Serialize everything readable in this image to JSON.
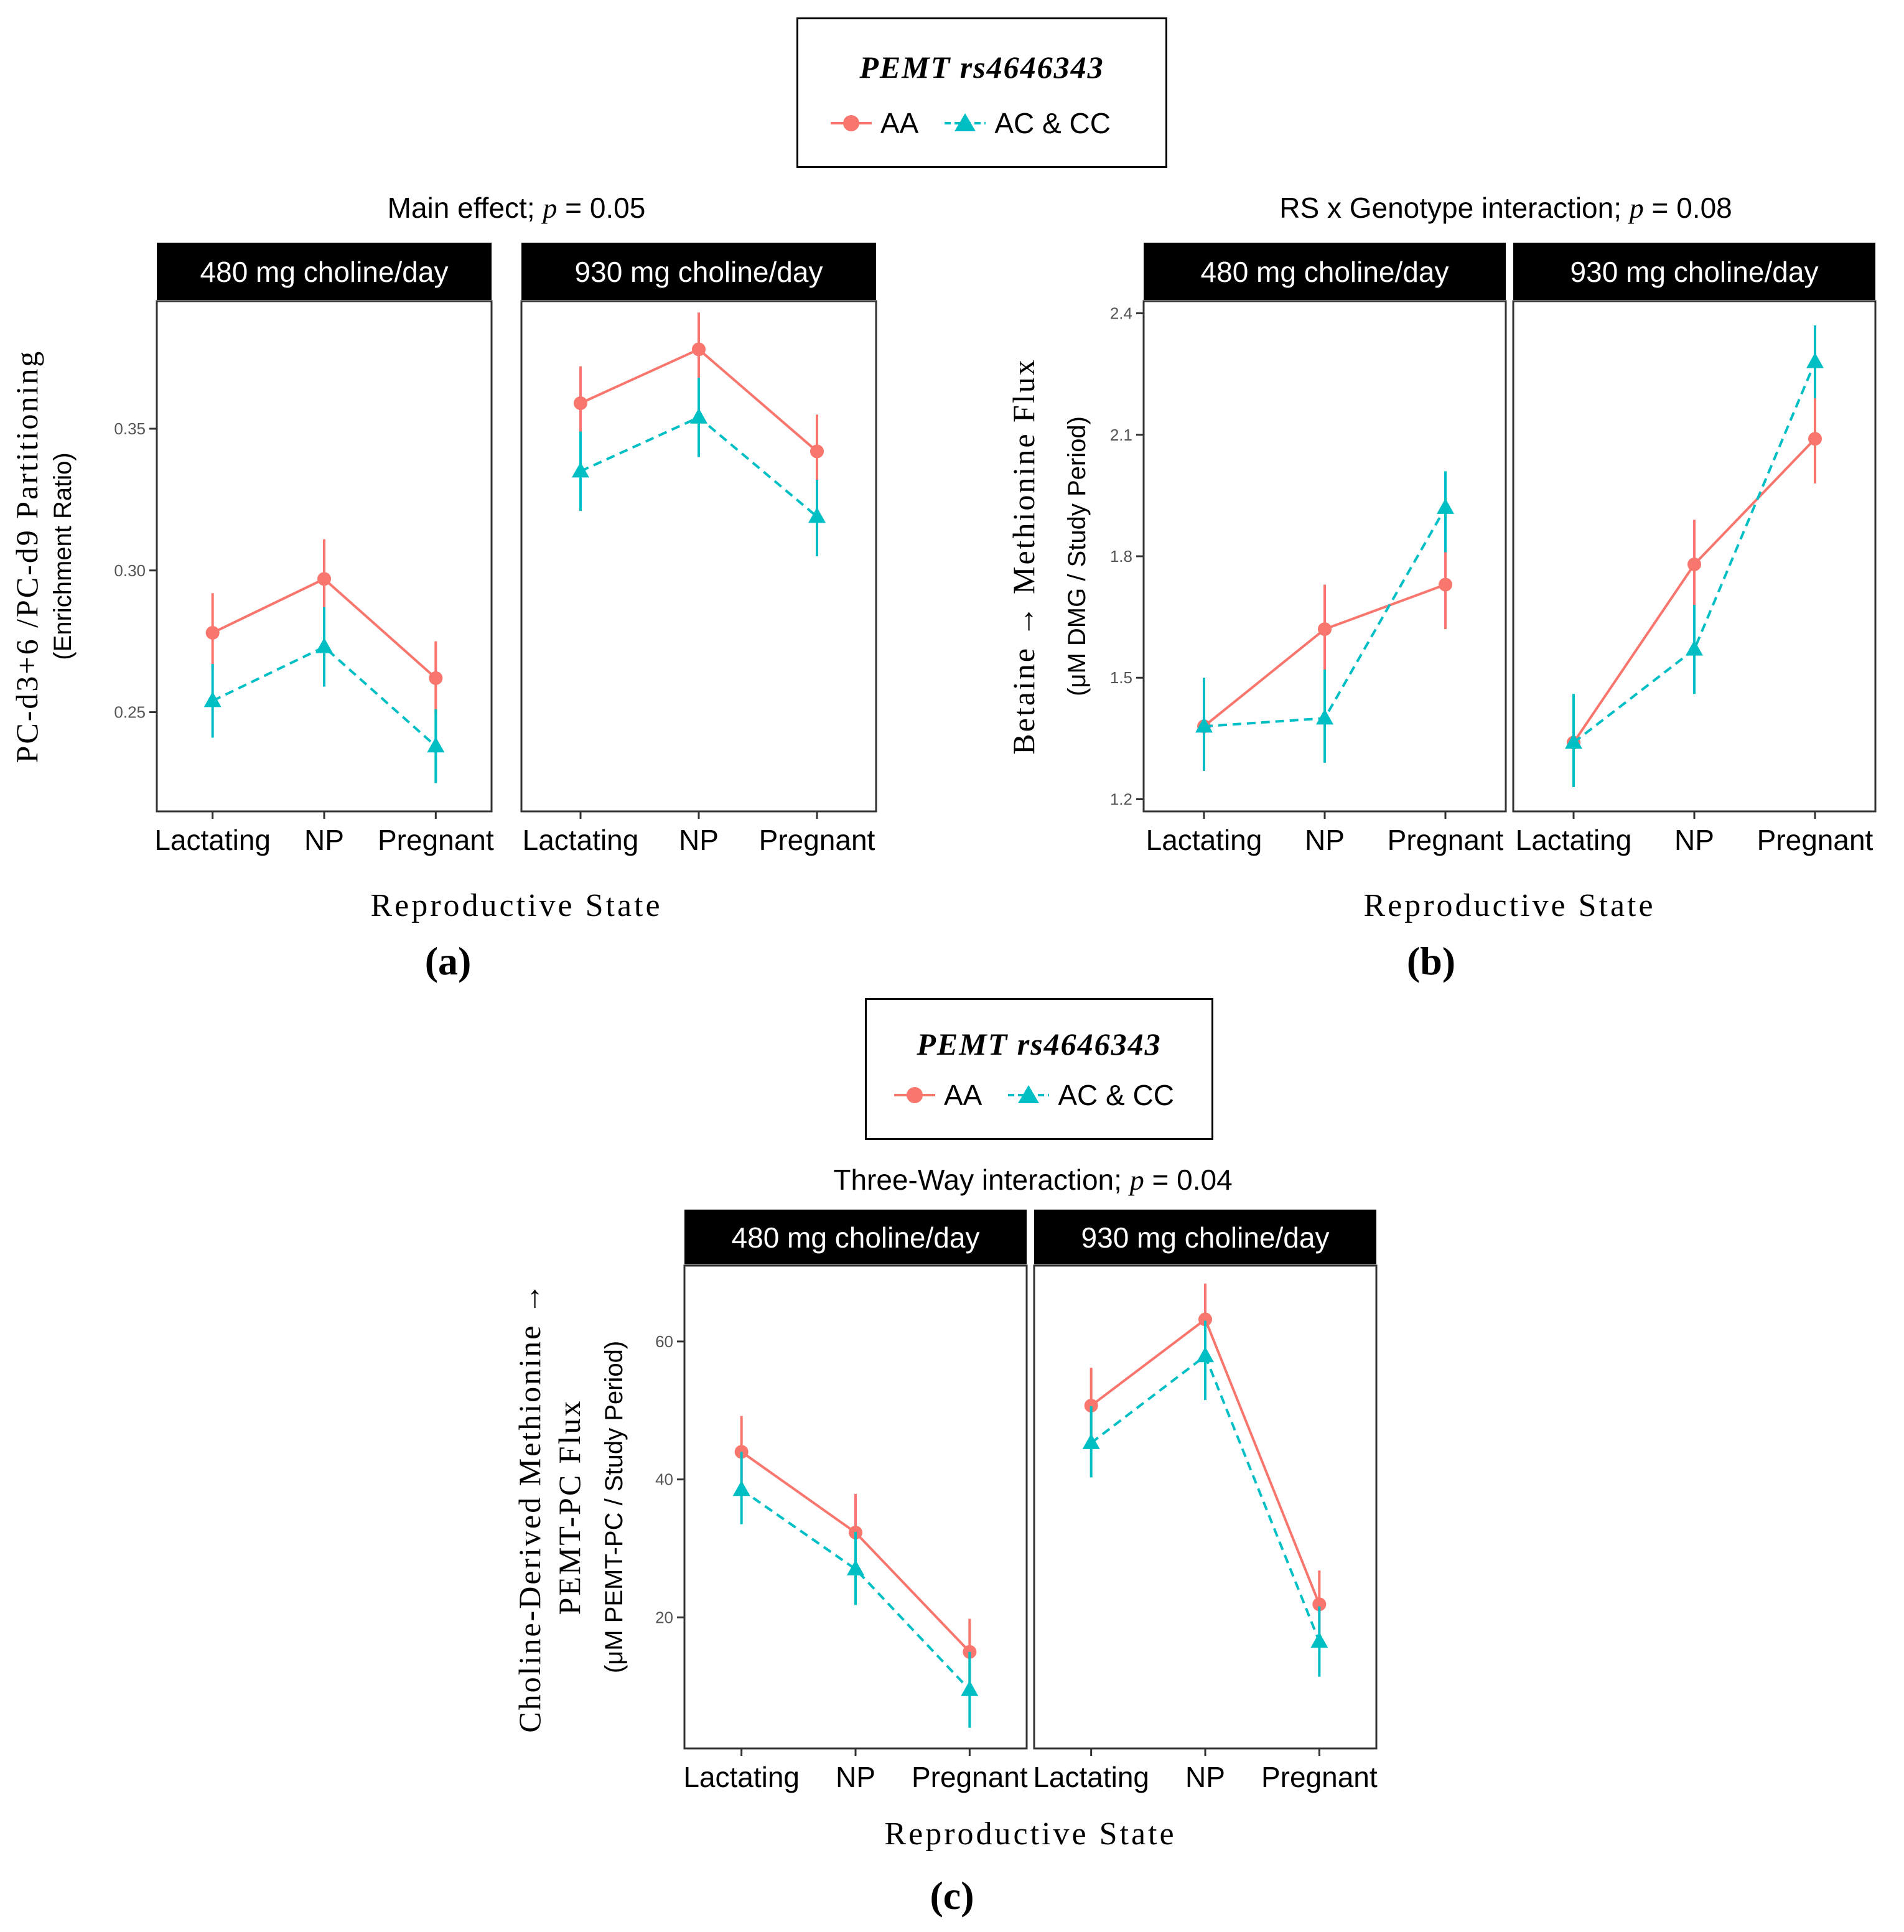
{
  "legend": {
    "title": "PEMT rs4646343",
    "groups": [
      "AA",
      "AC & CC"
    ]
  },
  "colors": {
    "AA": "#F8766D",
    "AC": "#00BFC4"
  },
  "chart_data": [
    {
      "id": "a",
      "type": "line",
      "panel_label": "(a)",
      "title_text": "Main effect; ",
      "title_p": "p",
      "title_val": " = 0.05",
      "ylabel_main": "PC-d3+6 /PC-d9 Partitioning",
      "ylabel_sub": "(Enrichment Ratio)",
      "xlabel": "Reproductive State",
      "facets": [
        "480 mg choline/day",
        "930 mg choline/day"
      ],
      "categories": [
        "Lactating",
        "NP",
        "Pregnant"
      ],
      "ylim": [
        0.215,
        0.395
      ],
      "yticks": [
        0.25,
        0.3,
        0.35
      ],
      "ytick_labels": [
        "0.25",
        "0.30",
        "0.35"
      ],
      "series": [
        {
          "name": "AA",
          "panels": [
            {
              "values": [
                0.278,
                0.297,
                0.262
              ],
              "lo": [
                0.265,
                0.284,
                0.249
              ],
              "hi": [
                0.292,
                0.311,
                0.275
              ]
            },
            {
              "values": [
                0.359,
                0.378,
                0.342
              ],
              "lo": [
                0.346,
                0.364,
                0.329
              ],
              "hi": [
                0.372,
                0.391,
                0.355
              ]
            }
          ]
        },
        {
          "name": "AC & CC",
          "panels": [
            {
              "values": [
                0.254,
                0.273,
                0.238
              ],
              "lo": [
                0.241,
                0.259,
                0.225
              ],
              "hi": [
                0.267,
                0.287,
                0.251
              ]
            },
            {
              "values": [
                0.335,
                0.354,
                0.319
              ],
              "lo": [
                0.321,
                0.34,
                0.305
              ],
              "hi": [
                0.349,
                0.368,
                0.332
              ]
            }
          ]
        }
      ]
    },
    {
      "id": "b",
      "type": "line",
      "panel_label": "(b)",
      "title_text": "RS x Genotype interaction; ",
      "title_p": "p",
      "title_val": " = 0.08",
      "ylabel_main": "Betaine → Methionine Flux",
      "ylabel_sub": "(μM DMG / Study Period)",
      "xlabel": "Reproductive State",
      "facets": [
        "480 mg choline/day",
        "930 mg choline/day"
      ],
      "categories": [
        "Lactating",
        "NP",
        "Pregnant"
      ],
      "ylim": [
        1.17,
        2.43
      ],
      "yticks": [
        1.2,
        1.5,
        1.8,
        2.1,
        2.4
      ],
      "ytick_labels": [
        "1.2",
        "1.5",
        "1.8",
        "2.1",
        "2.4"
      ],
      "series": [
        {
          "name": "AA",
          "panels": [
            {
              "values": [
                1.38,
                1.62,
                1.73
              ],
              "lo": [
                1.27,
                1.51,
                1.62
              ],
              "hi": [
                1.49,
                1.73,
                1.84
              ]
            },
            {
              "values": [
                1.34,
                1.78,
                2.09
              ],
              "lo": [
                1.23,
                1.67,
                1.98
              ],
              "hi": [
                1.45,
                1.89,
                2.2
              ]
            }
          ]
        },
        {
          "name": "AC & CC",
          "panels": [
            {
              "values": [
                1.38,
                1.4,
                1.92
              ],
              "lo": [
                1.27,
                1.29,
                1.81
              ],
              "hi": [
                1.5,
                1.52,
                2.01
              ]
            },
            {
              "values": [
                1.34,
                1.57,
                2.28
              ],
              "lo": [
                1.23,
                1.46,
                2.19
              ],
              "hi": [
                1.46,
                1.68,
                2.37
              ]
            }
          ]
        }
      ]
    },
    {
      "id": "c",
      "type": "line",
      "panel_label": "(c)",
      "title_text": "Three-Way interaction; ",
      "title_p": "p",
      "title_val": " = 0.04",
      "ylabel_main": "Choline-Derived Methionine →",
      "ylabel_main2": "PEMT-PC Flux",
      "ylabel_sub": "(μM PEMT-PC / Study Period)",
      "xlabel": "Reproductive State",
      "facets": [
        "480 mg choline/day",
        "930 mg choline/day"
      ],
      "categories": [
        "Lactating",
        "NP",
        "Pregnant"
      ],
      "ylim": [
        1.0,
        71.0
      ],
      "yticks": [
        20,
        40,
        60
      ],
      "ytick_labels": [
        "20",
        "40",
        "60"
      ],
      "series": [
        {
          "name": "AA",
          "panels": [
            {
              "values": [
                44.0,
                32.3,
                15.0
              ],
              "lo": [
                38.8,
                27.0,
                10.0
              ],
              "hi": [
                49.2,
                37.9,
                19.8
              ]
            },
            {
              "values": [
                50.7,
                63.2,
                21.9
              ],
              "lo": [
                45.2,
                58.0,
                16.8
              ],
              "hi": [
                56.2,
                68.4,
                26.8
              ]
            }
          ]
        },
        {
          "name": "AC & CC",
          "panels": [
            {
              "values": [
                38.5,
                27.0,
                9.5
              ],
              "lo": [
                33.5,
                21.8,
                4.0
              ],
              "hi": [
                44.0,
                32.4,
                15.0
              ]
            },
            {
              "values": [
                45.3,
                57.9,
                16.5
              ],
              "lo": [
                40.3,
                51.5,
                11.4
              ],
              "hi": [
                50.6,
                63.0,
                21.6
              ]
            }
          ]
        }
      ]
    }
  ]
}
